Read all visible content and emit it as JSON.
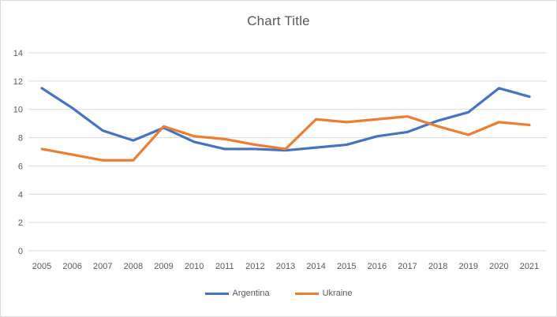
{
  "window": {
    "background": "#ffffff",
    "border_color": "#d9d9d9"
  },
  "chart_data": {
    "type": "line",
    "title": "Chart Title",
    "title_color": "#595959",
    "xlabel": "",
    "ylabel": "",
    "categories": [
      "2005",
      "2006",
      "2007",
      "2008",
      "2009",
      "2010",
      "2011",
      "2012",
      "2013",
      "2014",
      "2015",
      "2016",
      "2017",
      "2018",
      "2019",
      "2020",
      "2021"
    ],
    "series": [
      {
        "name": "Argentina",
        "color": "#4472C4",
        "values": [
          11.5,
          10.1,
          8.5,
          7.8,
          8.7,
          7.7,
          7.2,
          7.2,
          7.1,
          7.3,
          7.5,
          8.1,
          8.4,
          9.2,
          9.8,
          11.5,
          10.9
        ]
      },
      {
        "name": "Ukraine",
        "color": "#ED7D31",
        "values": [
          7.2,
          6.8,
          6.4,
          6.4,
          8.8,
          8.1,
          7.9,
          7.5,
          7.2,
          9.3,
          9.1,
          9.3,
          9.5,
          8.8,
          8.2,
          9.1,
          8.9
        ]
      }
    ],
    "ylim": [
      0,
      14
    ],
    "ytick_step": 2,
    "yticks": [
      "0",
      "2",
      "4",
      "6",
      "8",
      "10",
      "12",
      "14"
    ],
    "grid": "horizontal",
    "gridline_color": "#d9d9d9",
    "tick_label_color": "#595959",
    "legend_position": "bottom"
  }
}
